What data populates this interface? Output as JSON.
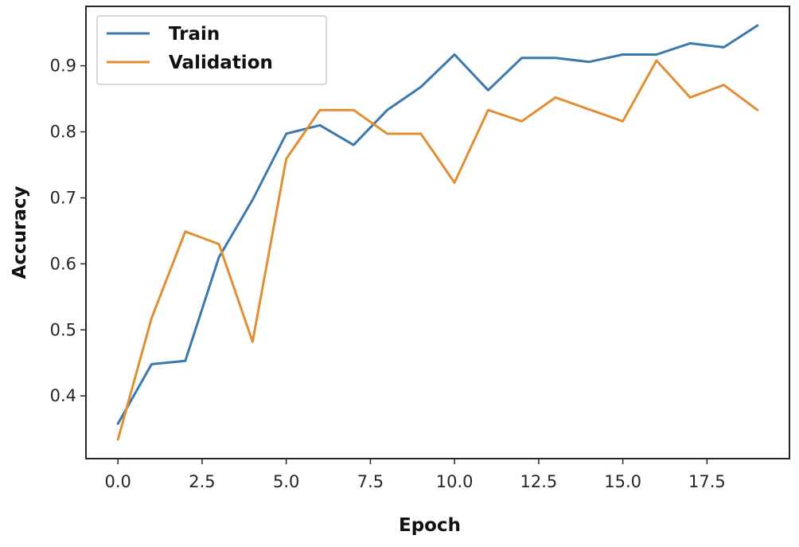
{
  "chart_data": {
    "type": "line",
    "title": "",
    "xlabel": "Epoch",
    "ylabel": "Accuracy",
    "xlim": [
      -0.95,
      19.95
    ],
    "ylim": [
      0.305,
      0.99
    ],
    "xticks": [
      0,
      2.5,
      5,
      7.5,
      10,
      12.5,
      15,
      17.5
    ],
    "xtick_labels": [
      "0.0",
      "2.5",
      "5.0",
      "7.5",
      "10.0",
      "12.5",
      "15.0",
      "17.5"
    ],
    "yticks": [
      0.4,
      0.5,
      0.6,
      0.7,
      0.8,
      0.9
    ],
    "ytick_labels": [
      "0.4",
      "0.5",
      "0.6",
      "0.7",
      "0.8",
      "0.9"
    ],
    "grid": false,
    "legend": "top-left",
    "x": [
      0,
      1,
      2,
      3,
      4,
      5,
      6,
      7,
      8,
      9,
      10,
      11,
      12,
      13,
      14,
      15,
      16,
      17,
      18,
      19
    ],
    "series": [
      {
        "name": "Train",
        "color": "#3a78ae",
        "values": [
          0.358,
          0.448,
          0.453,
          0.61,
          0.697,
          0.797,
          0.81,
          0.78,
          0.833,
          0.868,
          0.917,
          0.863,
          0.912,
          0.912,
          0.906,
          0.917,
          0.917,
          0.934,
          0.928,
          0.961
        ]
      },
      {
        "name": "Validation",
        "color": "#e08f33",
        "values": [
          0.334,
          0.518,
          0.649,
          0.63,
          0.482,
          0.759,
          0.833,
          0.833,
          0.797,
          0.797,
          0.723,
          0.833,
          0.816,
          0.852,
          0.834,
          0.816,
          0.908,
          0.852,
          0.871,
          0.833
        ]
      }
    ]
  }
}
